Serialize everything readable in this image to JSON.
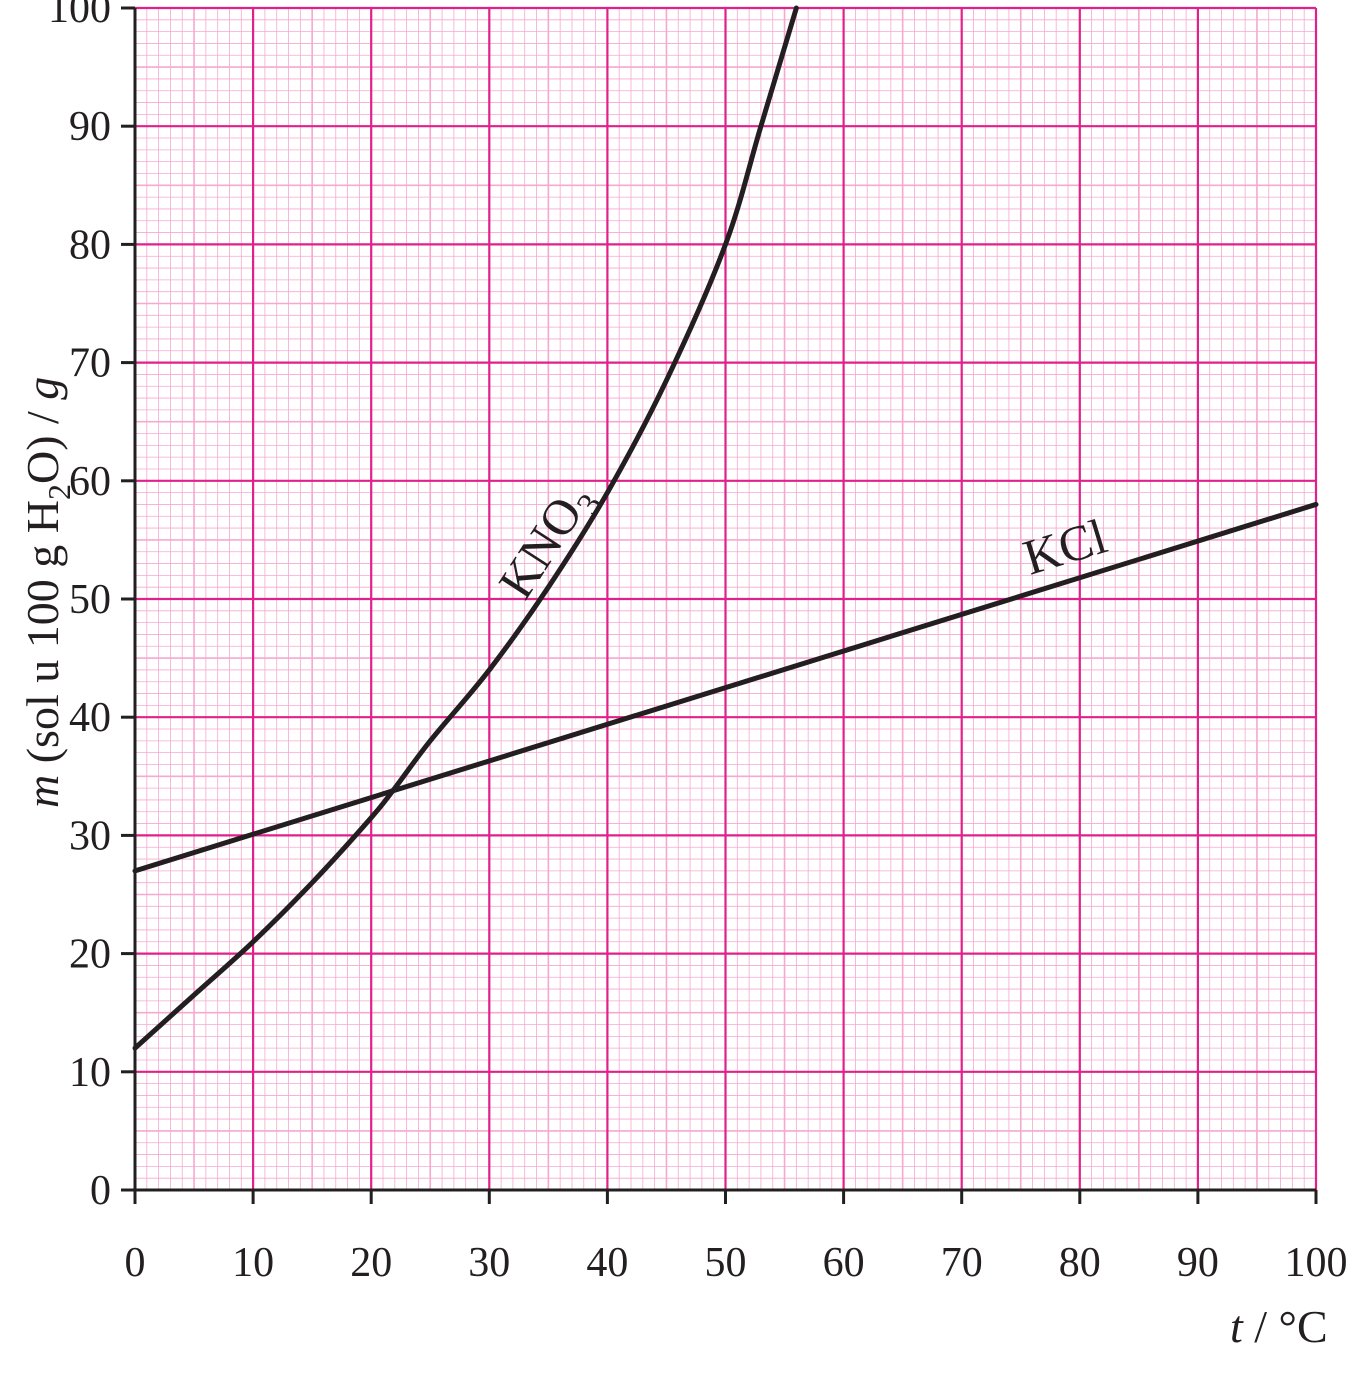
{
  "chart_data": {
    "type": "line",
    "xlabel": {
      "var": "t",
      "rest": " / °C"
    },
    "ylabel": {
      "var": "m",
      "rest": " (sol u 100 g H",
      "sub": "2",
      "rest2": "O) / ",
      "unit": "g"
    },
    "xlim": [
      0,
      100
    ],
    "ylim": [
      0,
      100
    ],
    "x_ticks": [
      "0",
      "10",
      "20",
      "30",
      "40",
      "50",
      "60",
      "70",
      "80",
      "90",
      "100"
    ],
    "y_ticks": [
      "0",
      "10",
      "20",
      "30",
      "40",
      "50",
      "60",
      "70",
      "80",
      "90",
      "100"
    ],
    "grid": true,
    "series": [
      {
        "name": "KNO",
        "name_sub": "3",
        "x": [
          0,
          5,
          10,
          15,
          20,
          22,
          25,
          30,
          35,
          40,
          45,
          50,
          53,
          56
        ],
        "y": [
          12,
          16.5,
          21,
          26,
          31.5,
          34,
          38,
          44,
          51,
          59,
          68.5,
          80,
          90,
          100
        ]
      },
      {
        "name": "KCl",
        "x": [
          0,
          10,
          20,
          22,
          30,
          40,
          50,
          60,
          70,
          80,
          90,
          100
        ],
        "y": [
          27,
          30,
          33,
          33.8,
          36.5,
          39.5,
          42.5,
          45.5,
          48.5,
          51.7,
          54.8,
          58
        ]
      }
    ],
    "colors": {
      "grid_major": "#e0218a",
      "grid_minor": "#f6a8cf",
      "axis": "#231f20",
      "curve": "#231f20",
      "background": "#ffffff"
    }
  }
}
